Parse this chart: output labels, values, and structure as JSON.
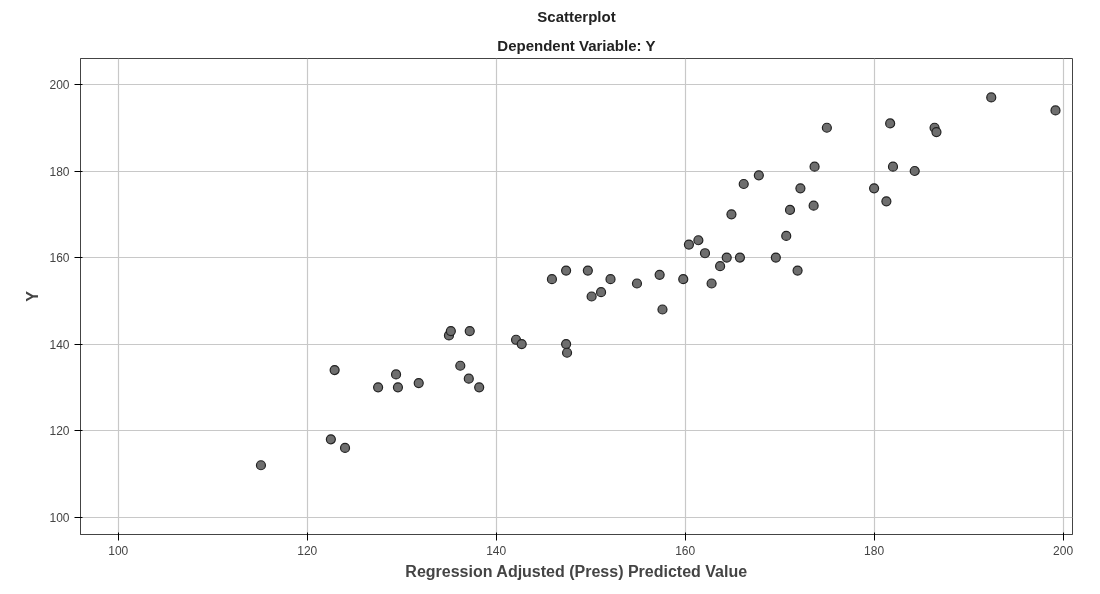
{
  "chart_data": {
    "type": "scatter",
    "title": "Scatterplot",
    "subtitle": "Dependent Variable: Y",
    "xlabel": "Regression Adjusted (Press) Predicted Value",
    "ylabel": "Y",
    "x": [
      115.1,
      122.5,
      124.0,
      122.9,
      127.5,
      129.6,
      129.4,
      131.8,
      135.0,
      135.2,
      137.2,
      136.2,
      137.1,
      138.2,
      142.1,
      142.7,
      147.4,
      147.5,
      145.9,
      147.4,
      149.7,
      150.1,
      151.1,
      152.1,
      154.9,
      157.3,
      157.6,
      159.8,
      160.4,
      161.4,
      162.1,
      162.8,
      163.7,
      164.4,
      165.8,
      164.9,
      166.2,
      167.8,
      169.6,
      170.7,
      171.1,
      171.9,
      172.2,
      173.6,
      173.7,
      175.0,
      181.7,
      182.0,
      184.3,
      180.0,
      181.3,
      186.4,
      186.6,
      192.4,
      199.2
    ],
    "series": [
      {
        "color": "#6e6e6e",
        "values": [
          112,
          118,
          116,
          134,
          130,
          130,
          133,
          131,
          142,
          143,
          143,
          135,
          132,
          130,
          141,
          140,
          140,
          138,
          155,
          157,
          157,
          151,
          152,
          155,
          154,
          156,
          148,
          155,
          163,
          164,
          161,
          154,
          158,
          160,
          160,
          170,
          177,
          179,
          160,
          165,
          171,
          157,
          176,
          172,
          181,
          190,
          191,
          181,
          180,
          176,
          173,
          190,
          189,
          197,
          194
        ]
      }
    ],
    "xlim": [
      96,
      201
    ],
    "ylim": [
      96,
      206
    ],
    "xticks": [
      100,
      120,
      140,
      160,
      180,
      200
    ],
    "yticks": [
      100,
      120,
      140,
      160,
      180,
      200
    ],
    "grid": true,
    "marker": "circle"
  }
}
